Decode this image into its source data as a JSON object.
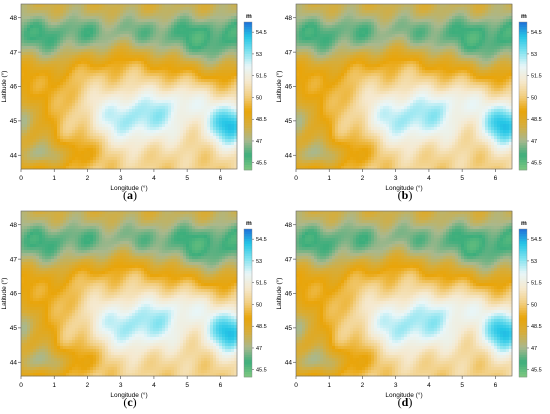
{
  "chart_data": [
    {
      "type": "heatmap",
      "panel_label": "a",
      "xlabel": "Longitude (°)",
      "ylabel": "Latitude (°)",
      "xlim": [
        0,
        6.5
      ],
      "ylim": [
        43.6,
        48.4
      ],
      "xticks": [
        "0",
        "1",
        "2",
        "3",
        "4",
        "5",
        "6"
      ],
      "yticks": [
        "44",
        "45",
        "46",
        "47",
        "48"
      ],
      "colorbar": {
        "unit": "m",
        "min": 45.0,
        "max": 55.2,
        "ticks": [
          "54.5",
          "53",
          "51.5",
          "50",
          "48.5",
          "47",
          "45.5"
        ]
      }
    },
    {
      "type": "heatmap",
      "panel_label": "b",
      "xlabel": "Longitude (°)",
      "ylabel": "Latitude (°)",
      "xlim": [
        0,
        6.5
      ],
      "ylim": [
        43.6,
        48.4
      ],
      "xticks": [
        "0",
        "1",
        "2",
        "3",
        "4",
        "5",
        "6"
      ],
      "yticks": [
        "44",
        "45",
        "46",
        "47",
        "48"
      ],
      "colorbar": {
        "unit": "m",
        "min": 45.0,
        "max": 55.2,
        "ticks": [
          "54.5",
          "53",
          "51.5",
          "50",
          "48.5",
          "47",
          "45.5"
        ]
      }
    },
    {
      "type": "heatmap",
      "panel_label": "c",
      "xlabel": "Longitude (°)",
      "ylabel": "Latitude (°)",
      "xlim": [
        0,
        6.5
      ],
      "ylim": [
        43.6,
        48.4
      ],
      "xticks": [
        "0",
        "1",
        "2",
        "3",
        "4",
        "5",
        "6"
      ],
      "yticks": [
        "44",
        "45",
        "46",
        "47",
        "48"
      ],
      "colorbar": {
        "unit": "m",
        "min": 45.0,
        "max": 55.2,
        "ticks": [
          "54.5",
          "53",
          "51.5",
          "50",
          "48.5",
          "47",
          "45.5"
        ]
      }
    },
    {
      "type": "heatmap",
      "panel_label": "d",
      "xlabel": "Longitude (°)",
      "ylabel": "Latitude (°)",
      "xlim": [
        0,
        6.5
      ],
      "ylim": [
        43.6,
        48.4
      ],
      "xticks": [
        "0",
        "1",
        "2",
        "3",
        "4",
        "5",
        "6"
      ],
      "yticks": [
        "44",
        "45",
        "46",
        "47",
        "48"
      ],
      "colorbar": {
        "unit": "m",
        "min": 45.0,
        "max": 55.2,
        "ticks": [
          "54.5",
          "53",
          "51.5",
          "50",
          "48.5",
          "47",
          "45.5"
        ]
      }
    }
  ],
  "colors": {
    "scale": [
      "#7fc77f",
      "#3cae7c",
      "#a9b88d",
      "#d6ad3b",
      "#e9a50a",
      "#f2cf83",
      "#f5e9cf",
      "#e8f6f8",
      "#7fe2ef",
      "#25c6e6",
      "#1f6fd8"
    ]
  }
}
